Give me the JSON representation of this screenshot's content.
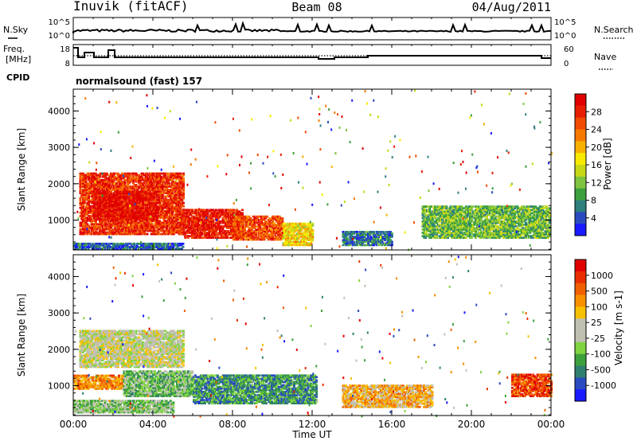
{
  "header": {
    "station": "Inuvik (fitACF)",
    "beam": "Beam 08",
    "date": "04/Aug/2011"
  },
  "top_panels": {
    "nsky_label": "N.Sky",
    "nsky_ticks": [
      "10^5",
      "10^0"
    ],
    "nsearch_label": "N.Search",
    "nsearch_ticks": [
      "10^5",
      "10^0"
    ],
    "freq_label_1": "Freq.",
    "freq_label_2": "[MHz]",
    "freq_ticks": [
      "18",
      "8"
    ],
    "nave_label": "Nave",
    "nave_ticks": [
      "60",
      "0"
    ],
    "cpid_label": "CPID",
    "cpid_value": "normalsound (fast) 157"
  },
  "chart_data": [
    {
      "type": "heatmap",
      "name": "power",
      "ylabel": "Slant Range [km]",
      "yticks": [
        1000,
        2000,
        3000,
        4000
      ],
      "ylim": [
        180,
        4600
      ],
      "xlim": [
        0,
        24
      ],
      "colorbar_label": "Power [dB]",
      "colorbar_ticks": [
        "28",
        "24",
        "20",
        "16",
        "12",
        "8",
        "4"
      ],
      "colors": [
        "#1a1aff",
        "#2a4bc0",
        "#2f7f7f",
        "#3ca03c",
        "#7fc43f",
        "#c8d818",
        "#f7ea00",
        "#f7b000",
        "#f77a00",
        "#f04b00",
        "#e81e00",
        "#e00000"
      ],
      "regions": [
        {
          "t": [
            0.3,
            5.5
          ],
          "r": [
            600,
            2300
          ],
          "level": 0.85
        },
        {
          "t": [
            1.0,
            4.2
          ],
          "r": [
            1000,
            1800
          ],
          "level": 0.95
        },
        {
          "t": [
            5.5,
            8.5
          ],
          "r": [
            500,
            1300
          ],
          "level": 0.9
        },
        {
          "t": [
            8.0,
            10.5
          ],
          "r": [
            450,
            1100
          ],
          "level": 0.8
        },
        {
          "t": [
            10.5,
            12.0
          ],
          "r": [
            300,
            900
          ],
          "level": 0.55
        },
        {
          "t": [
            0.0,
            5.5
          ],
          "r": [
            200,
            350
          ],
          "level": 0.15
        },
        {
          "t": [
            13.5,
            16.0
          ],
          "r": [
            300,
            700
          ],
          "level": 0.2
        },
        {
          "t": [
            17.5,
            23.9
          ],
          "r": [
            500,
            1400
          ],
          "level": 0.35
        }
      ]
    },
    {
      "type": "heatmap",
      "name": "velocity",
      "ylabel": "Slant Range [km]",
      "yticks": [
        1000,
        2000,
        3000,
        4000
      ],
      "ylim": [
        180,
        4600
      ],
      "xlim": [
        0,
        24
      ],
      "colorbar_label": "Velocity [m s-1]",
      "colorbar_ticks": [
        "1000",
        "500",
        "100",
        "25",
        "-25",
        "-100",
        "-500",
        "-1000"
      ],
      "colors": [
        "#1a1aff",
        "#2a4bc0",
        "#2f7f6f",
        "#3ca03c",
        "#7fd43f",
        "#c0c0b0",
        "#c0c0b0",
        "#f7c000",
        "#f79000",
        "#f06000",
        "#e82e00",
        "#e00000"
      ],
      "regions": [
        {
          "t": [
            0.3,
            5.5
          ],
          "r": [
            1500,
            2500
          ],
          "level": 0.5
        },
        {
          "t": [
            0.0,
            2.5
          ],
          "r": [
            900,
            1300
          ],
          "level": 0.72
        },
        {
          "t": [
            2.5,
            6.0
          ],
          "r": [
            700,
            1400
          ],
          "level": 0.35
        },
        {
          "t": [
            6.0,
            12.2
          ],
          "r": [
            500,
            1300
          ],
          "level": 0.25
        },
        {
          "t": [
            0.0,
            5.0
          ],
          "r": [
            250,
            600
          ],
          "level": 0.38
        },
        {
          "t": [
            13.5,
            18.0
          ],
          "r": [
            400,
            1000
          ],
          "level": 0.65
        },
        {
          "t": [
            22.0,
            24.0
          ],
          "r": [
            700,
            1300
          ],
          "level": 0.85
        }
      ]
    }
  ],
  "xaxis": {
    "label": "Time UT",
    "ticks": [
      "00:00",
      "04:00",
      "08:00",
      "12:00",
      "16:00",
      "20:00",
      "00:00"
    ]
  }
}
